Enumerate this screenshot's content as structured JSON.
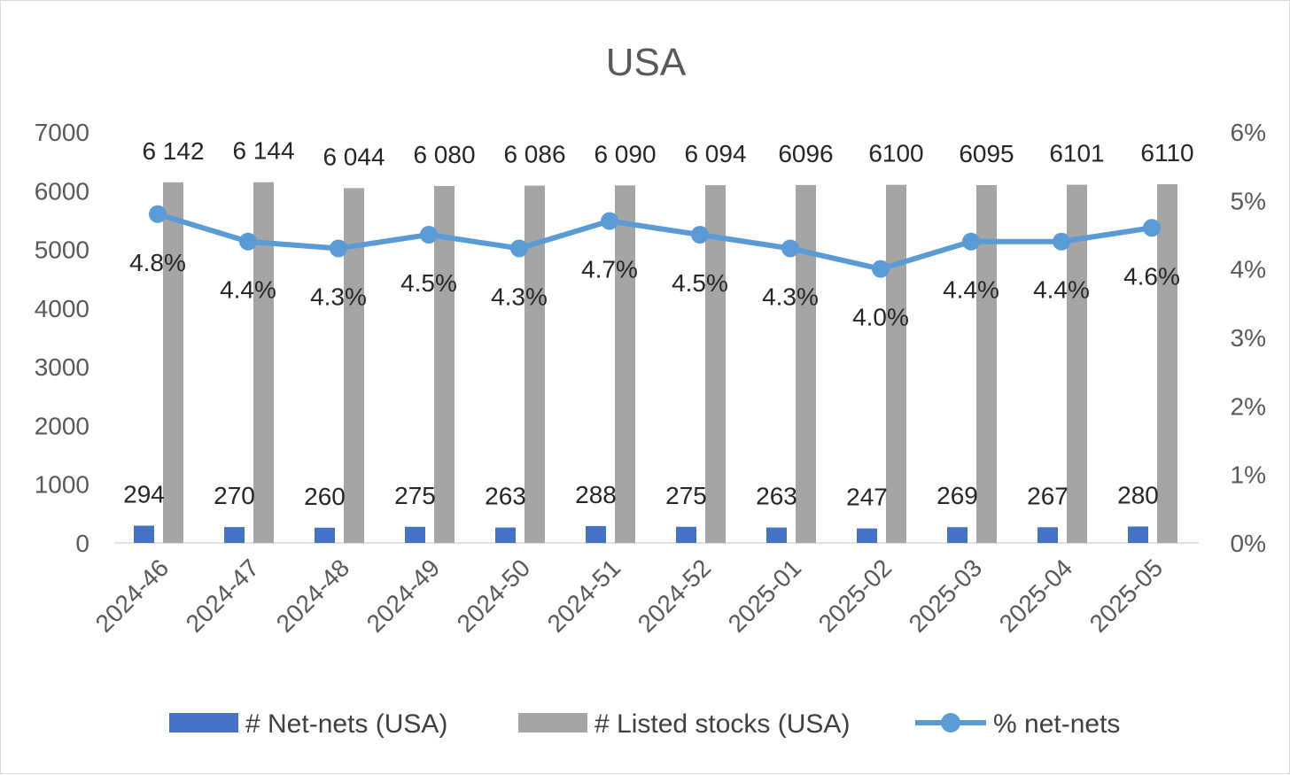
{
  "chart_data": {
    "type": "bar",
    "title": "USA",
    "categories": [
      "2024-46",
      "2024-47",
      "2024-48",
      "2024-49",
      "2024-50",
      "2024-51",
      "2024-52",
      "2025-01",
      "2025-02",
      "2025-03",
      "2025-04",
      "2025-05"
    ],
    "series": [
      {
        "name": "# Net-nets (USA)",
        "kind": "bar",
        "axis": "left",
        "color": "#4472C4",
        "values": [
          294,
          270,
          260,
          275,
          263,
          288,
          275,
          263,
          247,
          269,
          267,
          280
        ],
        "labels": [
          "294",
          "270",
          "260",
          "275",
          "263",
          "288",
          "275",
          "263",
          "247",
          "269",
          "267",
          "280"
        ]
      },
      {
        "name": "# Listed stocks (USA)",
        "kind": "bar",
        "axis": "left",
        "color": "#A5A5A5",
        "values": [
          6142,
          6144,
          6044,
          6080,
          6086,
          6090,
          6094,
          6096,
          6100,
          6095,
          6101,
          6110
        ],
        "labels": [
          "6 142",
          "6 144",
          "6 044",
          "6 080",
          "6 086",
          "6 090",
          "6 094",
          "6096",
          "6100",
          "6095",
          "6101",
          "6110"
        ]
      },
      {
        "name": "% net-nets",
        "kind": "line",
        "axis": "right",
        "color": "#5B9BD5",
        "values": [
          4.8,
          4.4,
          4.3,
          4.5,
          4.3,
          4.7,
          4.5,
          4.3,
          4.0,
          4.4,
          4.4,
          4.6
        ],
        "labels": [
          "4.8%",
          "4.4%",
          "4.3%",
          "4.5%",
          "4.3%",
          "4.7%",
          "4.5%",
          "4.3%",
          "4.0%",
          "4.4%",
          "4.4%",
          "4.6%"
        ]
      }
    ],
    "y_left": {
      "lim": [
        0,
        7000
      ],
      "ticks": [
        0,
        1000,
        2000,
        3000,
        4000,
        5000,
        6000,
        7000
      ],
      "tick_labels": [
        "0",
        "1000",
        "2000",
        "3000",
        "4000",
        "5000",
        "6000",
        "7000"
      ]
    },
    "y_right": {
      "lim": [
        0,
        6
      ],
      "ticks": [
        0,
        1,
        2,
        3,
        4,
        5,
        6
      ],
      "tick_labels": [
        "0%",
        "1%",
        "2%",
        "3%",
        "4%",
        "5%",
        "6%"
      ]
    },
    "grid": false,
    "legend": "bottom"
  }
}
